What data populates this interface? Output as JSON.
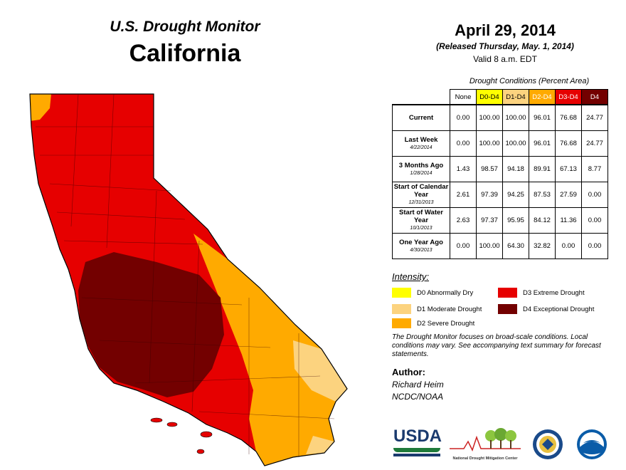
{
  "header": {
    "product": "U.S. Drought Monitor",
    "state": "California",
    "date": "April 29, 2014",
    "released": "(Released Thursday, May. 1, 2014)",
    "valid": "Valid 8 a.m. EDT"
  },
  "table": {
    "caption": "Drought Conditions (Percent Area)",
    "columns": [
      "None",
      "D0-D4",
      "D1-D4",
      "D2-D4",
      "D3-D4",
      "D4"
    ],
    "column_colors": [
      "#ffffff",
      "#ffff00",
      "#fcd37f",
      "#ffaa00",
      "#e60000",
      "#730000"
    ],
    "column_text_colors": [
      "#000000",
      "#000000",
      "#000000",
      "#ffffff",
      "#ffffff",
      "#ffffff"
    ],
    "rows": [
      {
        "label": "Current",
        "sub": "",
        "values": [
          "0.00",
          "100.00",
          "100.00",
          "96.01",
          "76.68",
          "24.77"
        ]
      },
      {
        "label": "Last Week",
        "sub": "4/22/2014",
        "values": [
          "0.00",
          "100.00",
          "100.00",
          "96.01",
          "76.68",
          "24.77"
        ]
      },
      {
        "label": "3 Months Ago",
        "sub": "1/28/2014",
        "values": [
          "1.43",
          "98.57",
          "94.18",
          "89.91",
          "67.13",
          "8.77"
        ]
      },
      {
        "label": "Start of Calendar Year",
        "sub": "12/31/2013",
        "values": [
          "2.61",
          "97.39",
          "94.25",
          "87.53",
          "27.59",
          "0.00"
        ]
      },
      {
        "label": "Start of Water Year",
        "sub": "10/1/2013",
        "values": [
          "2.63",
          "97.37",
          "95.95",
          "84.12",
          "11.36",
          "0.00"
        ]
      },
      {
        "label": "One Year Ago",
        "sub": "4/30/2013",
        "values": [
          "0.00",
          "100.00",
          "64.30",
          "32.82",
          "0.00",
          "0.00"
        ]
      }
    ]
  },
  "legend": {
    "title": "Intensity:",
    "items": [
      {
        "label": "D0 Abnormally Dry",
        "color": "#ffff00"
      },
      {
        "label": "D1 Moderate Drought",
        "color": "#fcd37f"
      },
      {
        "label": "D2 Severe Drought",
        "color": "#ffaa00"
      },
      {
        "label": "D3 Extreme Drought",
        "color": "#e60000"
      },
      {
        "label": "D4 Exceptional Drought",
        "color": "#730000"
      }
    ]
  },
  "note": "The Drought Monitor focuses on broad-scale conditions. Local conditions may vary. See accompanying text summary for forecast statements.",
  "author": {
    "heading": "Author:",
    "name": "Richard Heim",
    "org": "NCDC/NOAA"
  },
  "logos": {
    "usda": "USDA",
    "ndmc": "National Drought Mitigation Center",
    "doc": "department-of-commerce-seal",
    "noaa": "NOAA"
  }
}
